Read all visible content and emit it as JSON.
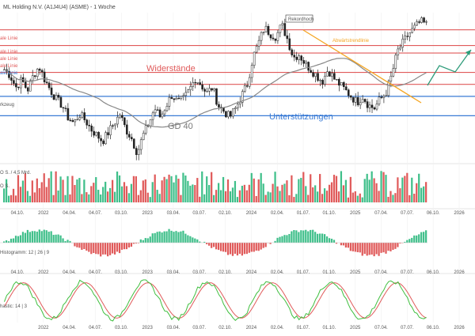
{
  "header": {
    "title": "ML Holding N.V. (A1J4U4) (ASME) - 1 Woche"
  },
  "colors": {
    "up": "#2a2a2a",
    "down": "#2a2a2a",
    "resistance": "#e05a5a",
    "support": "#3a7bd5",
    "trend": "#f5a623",
    "ma": "#888888",
    "macd_pos": "#3fbf8a",
    "macd_neg": "#e05a5a",
    "stoch_k": "#3fbf3f",
    "stoch_d": "#e05a5a",
    "volume": "#e05a5a",
    "volume_alt": "#3fbf8a",
    "projection": "#2e9c7a"
  },
  "chart_data": [
    {
      "type": "candlestick",
      "panel": "price",
      "labels": {
        "resistance_zone": "Widerstände",
        "support_zone": "Unterstützungen",
        "moving_average": "GD 40",
        "all_time_high": "Rekordhoch",
        "downtrend_line": "Abwärtstrendlinie"
      },
      "left_edge_labels": [
        "ale Linie",
        "ale Linie",
        "ale Linie",
        "ale Linie",
        "ale Linie",
        "rkzeug"
      ],
      "level_lines": {
        "resistance": [
          88.5,
          78,
          73,
          60,
          52
        ],
        "support": [
          44,
          31
        ]
      },
      "ylim": [
        0,
        100
      ],
      "series_points": [
        62,
        58,
        50,
        55,
        48,
        58,
        64,
        55,
        48,
        42,
        38,
        30,
        26,
        32,
        28,
        22,
        18,
        14,
        20,
        26,
        32,
        22,
        16,
        6,
        18,
        26,
        36,
        30,
        38,
        45,
        40,
        42,
        48,
        56,
        52,
        46,
        50,
        38,
        34,
        30,
        36,
        44,
        52,
        70,
        80,
        90,
        86,
        84,
        92,
        82,
        70,
        72,
        66,
        62,
        58,
        54,
        62,
        56,
        52,
        48,
        44,
        40,
        44,
        38,
        36,
        42,
        46,
        58,
        74,
        80,
        86,
        90,
        94,
        92
      ]
    },
    {
      "type": "bar",
      "panel": "volume",
      "labels": [
        "O S. / 4,5 Mrd.",
        "O S."
      ]
    },
    {
      "type": "bar",
      "panel": "macd",
      "labels": [
        "Histogramm: 12 | 26 | 9"
      ]
    },
    {
      "type": "line",
      "panel": "stochastic",
      "labels": [
        "hastic: 14 | 3"
      ]
    }
  ],
  "x_axis_ticks": [
    "04.10.",
    "2022",
    "04.04.",
    "04.07.",
    "03.10.",
    "2023",
    "03.04.",
    "03.07.",
    "02.10.",
    "2024",
    "02.04.",
    "01.07.",
    "01.10.",
    "2025",
    "07.04.",
    "07.07.",
    "06.10.",
    "2026"
  ],
  "x_axis_ticks_bottom": [
    "2022",
    "04.04.",
    "04.07.",
    "03.10.",
    "2023",
    "03.04.",
    "03.07.",
    "02.10.",
    "2024",
    "02.04.",
    "01.07.",
    "01.10.",
    "2025",
    "07.04.",
    "07.07.",
    "06.10.",
    "2026"
  ]
}
